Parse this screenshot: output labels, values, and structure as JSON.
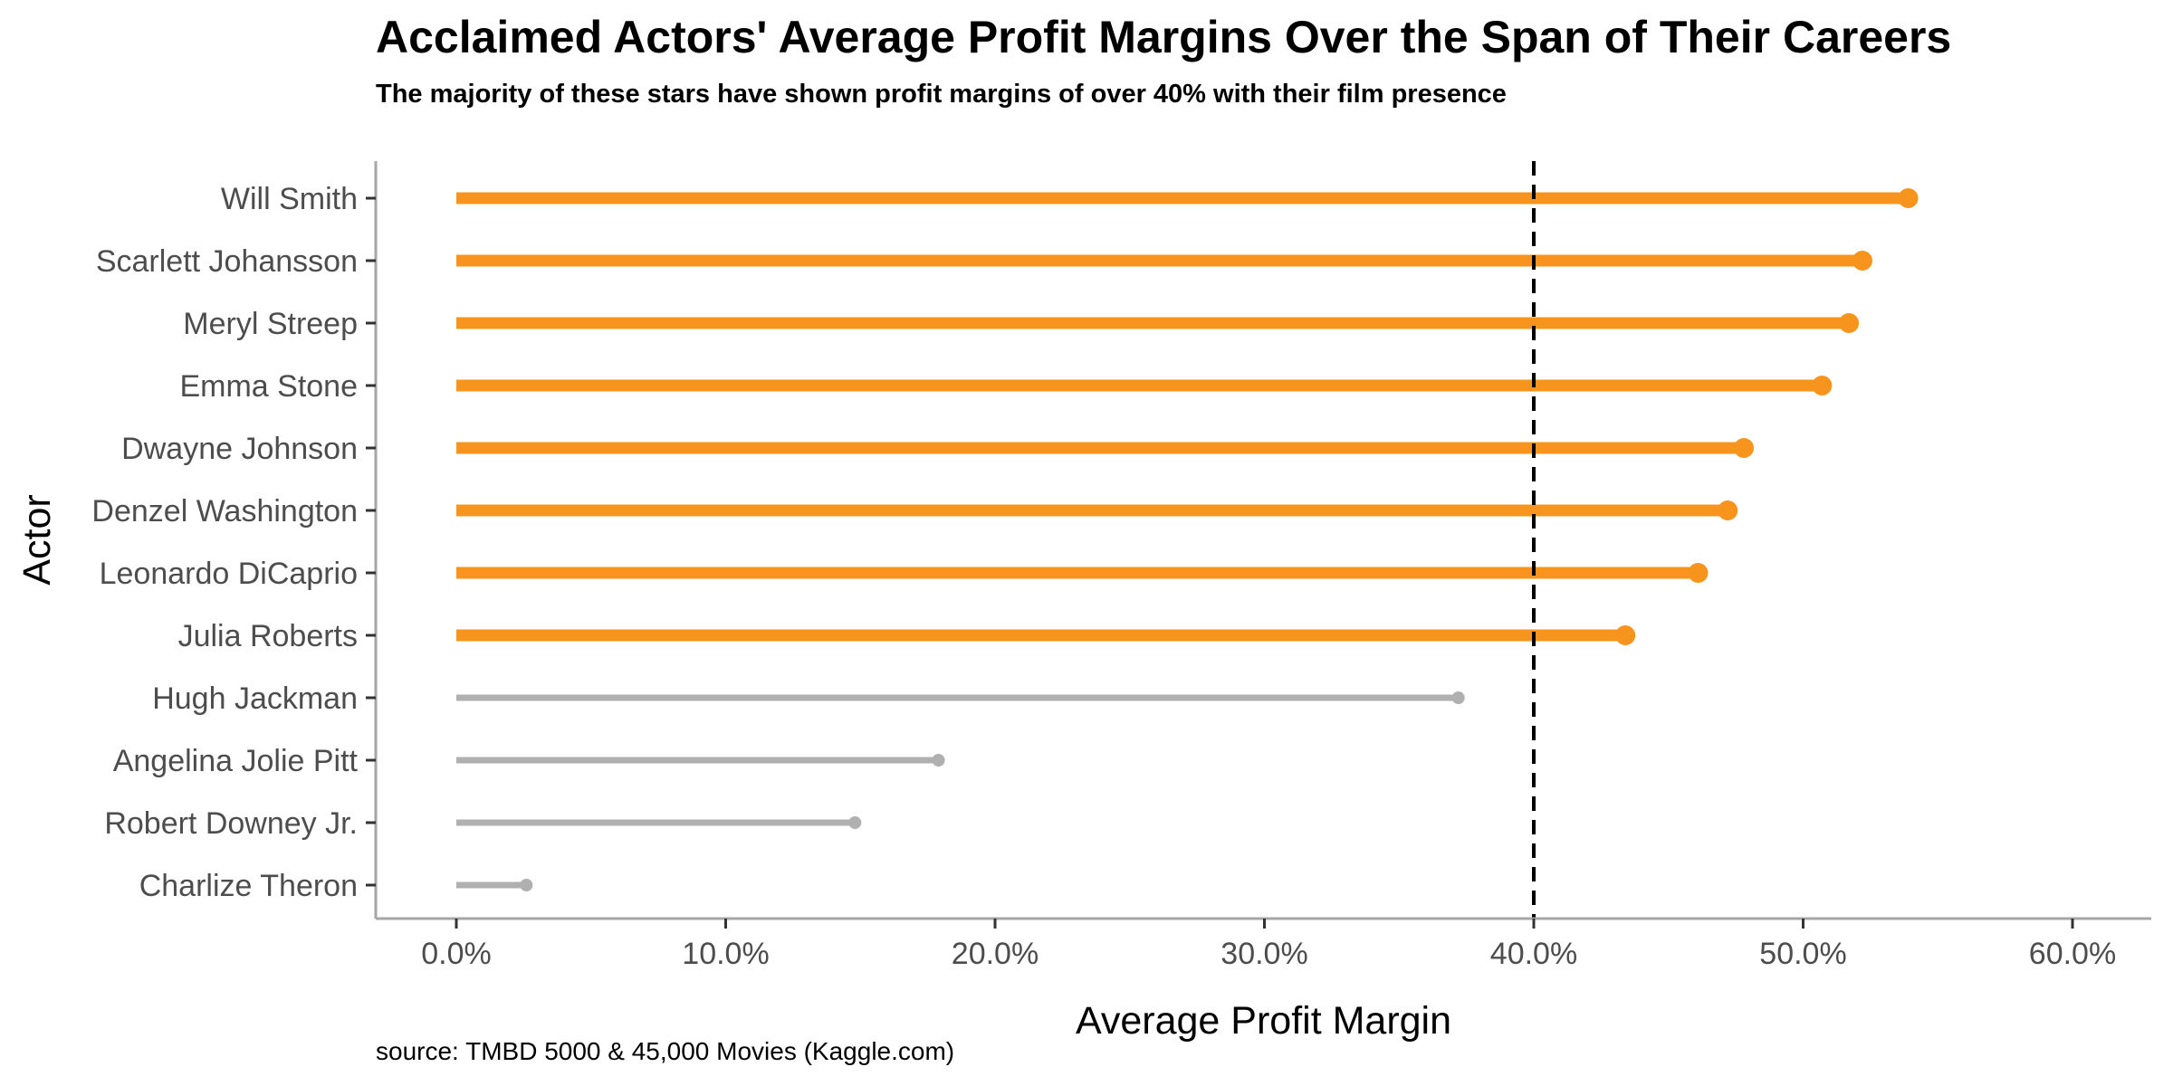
{
  "chart_data": {
    "type": "lollipop",
    "title": "Acclaimed Actors' Average Profit Margins Over the Span of Their Careers",
    "subtitle": "The majority of these stars have shown profit margins of over 40% with their film presence",
    "caption": "source: TMBD 5000 & 45,000 Movies (Kaggle.com)",
    "xlabel": "Average Profit Margin",
    "ylabel": "Actor",
    "xlim": [
      -0.03,
      0.63
    ],
    "x_ticks": [
      0,
      0.1,
      0.2,
      0.3,
      0.4,
      0.5,
      0.6
    ],
    "x_tick_labels": [
      "0.0%",
      "10.0%",
      "20.0%",
      "30.0%",
      "40.0%",
      "50.0%",
      "60.0%"
    ],
    "reference_line": {
      "x": 0.4,
      "style": "dashed",
      "color": "#000000"
    },
    "threshold": 0.4,
    "colors": {
      "above": "#F7941D",
      "below": "#B0B0B0"
    },
    "categories": [
      "Will Smith",
      "Scarlett Johansson",
      "Meryl Streep",
      "Emma Stone",
      "Dwayne Johnson",
      "Denzel Washington",
      "Leonardo DiCaprio",
      "Julia Roberts",
      "Hugh Jackman",
      "Angelina Jolie Pitt",
      "Robert Downey Jr.",
      "Charlize Theron"
    ],
    "values": [
      0.539,
      0.522,
      0.517,
      0.507,
      0.478,
      0.472,
      0.461,
      0.434,
      0.372,
      0.179,
      0.148,
      0.026
    ],
    "grid": false,
    "legend": "none"
  }
}
